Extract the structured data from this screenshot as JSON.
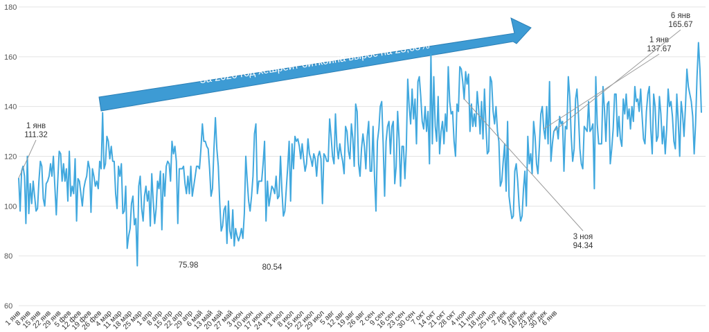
{
  "chart_data": {
    "type": "line",
    "title": "",
    "xlabel": "",
    "ylabel": "",
    "ylim": [
      60,
      180
    ],
    "yticks": [
      60,
      80,
      100,
      120,
      140,
      160,
      180
    ],
    "grid": true,
    "colors": {
      "line": "#41a8de",
      "banner_fill": "#3d9bd4",
      "banner_stroke": "#2a7fb6",
      "grid": "#e3e3e3",
      "text": "#333333"
    },
    "x_tick_labels": [
      "1 янв",
      "8 янв",
      "15 янв",
      "22 янв",
      "29 янв",
      "5 фев",
      "12 фев",
      "19 фев",
      "26 фев",
      "4 мар",
      "11 мар",
      "18 мар",
      "25 мар",
      "1 апр",
      "8 апр",
      "15 апр",
      "22 апр",
      "29 апр",
      "6 май",
      "13 май",
      "20 май",
      "27 май",
      "3 июн",
      "10 июн",
      "17 июн",
      "24 июн",
      "1 июл",
      "8 июл",
      "15 июл",
      "22 июл",
      "29 июл",
      "5 авг",
      "12 авг",
      "19 авг",
      "26 авг",
      "2 сен",
      "9 сен",
      "16 сен",
      "23 сен",
      "30 сен",
      "7 окт",
      "14 окт",
      "21 окт",
      "28 окт",
      "4 ноя",
      "11 ноя",
      "18 ноя",
      "25 ноя",
      "2 дек",
      "9 дек",
      "16 дек",
      "23 дек",
      "30 дек",
      "6 янв"
    ],
    "series": [
      {
        "values": [
          111.3,
          98,
          114,
          116,
          112,
          93,
          120,
          97,
          109,
          101,
          110,
          104,
          98,
          99,
          110,
          118,
          116,
          103,
          100,
          109,
          110,
          112,
          117,
          112,
          120,
          108,
          96.5,
          110,
          122,
          121,
          110,
          117,
          110,
          115,
          102,
          122,
          104,
          108,
          105,
          119,
          94,
          111,
          110,
          105,
          100,
          107,
          110,
          112,
          118,
          115,
          97.5,
          115,
          112,
          108,
          110,
          107,
          118,
          115,
          137.5,
          115,
          117,
          128,
          126,
          119,
          124,
          118,
          118,
          105,
          99,
          116,
          112,
          117,
          97,
          98,
          108,
          83,
          88,
          91,
          101,
          104,
          92.5,
          95,
          76,
          108,
          112,
          99,
          94,
          104,
          108,
          102,
          106,
          92,
          113,
          102,
          93,
          99,
          110,
          107,
          114,
          90.5,
          113,
          104,
          116,
          118,
          117,
          110,
          126,
          121,
          124,
          118,
          93,
          115,
          115,
          115,
          116,
          109,
          105,
          112,
          105,
          116,
          104,
          108,
          112,
          116,
          116,
          115,
          123,
          133,
          126,
          126,
          124,
          123,
          115,
          104,
          107,
          123,
          135.5,
          123,
          116,
          101,
          90,
          92,
          98.5,
          100,
          85,
          102,
          90,
          87,
          98.5,
          84,
          91,
          88,
          86,
          88,
          91,
          87,
          97,
          120,
          110,
          102,
          98,
          104,
          112,
          129,
          133,
          105,
          110,
          110,
          110,
          117,
          126,
          94,
          110,
          100,
          104,
          108,
          107,
          105,
          112,
          103,
          104,
          120,
          106,
          96,
          98,
          107,
          116,
          126,
          102,
          125,
          115,
          128,
          126,
          127,
          124,
          119,
          125,
          119,
          114,
          117,
          127,
          121,
          119,
          116,
          121,
          119,
          112,
          120,
          122,
          119,
          101,
          121,
          120,
          118,
          118,
          135,
          128,
          120,
          117,
          137,
          124,
          119,
          125,
          121,
          118,
          113,
          132,
          130,
          122,
          119,
          133,
          127,
          116,
          141,
          138,
          117,
          112,
          123,
          129,
          124,
          115,
          128,
          134,
          114,
          114,
          132,
          112,
          98,
          126,
          131,
          140,
          142,
          125,
          104,
          126,
          132,
          134,
          121,
          132,
          134,
          109,
          116,
          138,
          127,
          108,
          124,
          124,
          111,
          123,
          151,
          140,
          133,
          147,
          135,
          143,
          125,
          150,
          152,
          144,
          134,
          131,
          140,
          130,
          138,
          117,
          161,
          125,
          152,
          132,
          126,
          144,
          121,
          130,
          134,
          125,
          137,
          130,
          156,
          142,
          137,
          138,
          126,
          120,
          141,
          138,
          156,
          155,
          150,
          143,
          154,
          149,
          153,
          130,
          141,
          132,
          137,
          132,
          146,
          139,
          129,
          142,
          127,
          147,
          133,
          121,
          122,
          152,
          150,
          138,
          133,
          140,
          130,
          126,
          108,
          110,
          118,
          125,
          106,
          134,
          104,
          99,
          95,
          96,
          114,
          117,
          110,
          100,
          94,
          96,
          107,
          114,
          100,
          128,
          117,
          121,
          113,
          134,
          128,
          117,
          113,
          124,
          137,
          140,
          131,
          127,
          140,
          125,
          150,
          118,
          125,
          130,
          131,
          132,
          127,
          136,
          133,
          134,
          114,
          132,
          131,
          152,
          144,
          128,
          118,
          123,
          143,
          147,
          137,
          123,
          117,
          115,
          132,
          131,
          130,
          142,
          130,
          131,
          133,
          107,
          152,
          133,
          125,
          125,
          125,
          148,
          139,
          126,
          141,
          142,
          117,
          123,
          131,
          145,
          145,
          128,
          136,
          127,
          124,
          143,
          137,
          145,
          135,
          139,
          131,
          140,
          134,
          148,
          142,
          143,
          138,
          147,
          136,
          127,
          125,
          138,
          145,
          148,
          131,
          121,
          145,
          140,
          126,
          128,
          144,
          137,
          125,
          132,
          121,
          131,
          147,
          140,
          142,
          136,
          126,
          123,
          145,
          134,
          120,
          142,
          137,
          128,
          140,
          155,
          148,
          145,
          142,
          136,
          121,
          133,
          152,
          165.67,
          155,
          137.5
        ]
      }
    ],
    "annotations": [
      {
        "text": [
          "1 янв",
          "111.32"
        ]
      },
      {
        "text": [
          "75.98"
        ]
      },
      {
        "text": [
          "80.54"
        ]
      },
      {
        "text": [
          "3 ноя",
          "94.34"
        ]
      },
      {
        "text": [
          "1 янв",
          "137.67"
        ]
      },
      {
        "text": [
          "6 янв",
          "165.67"
        ]
      }
    ],
    "banner_text": "За 2020 год хешрейт биткоина вырос на 23,68%"
  }
}
